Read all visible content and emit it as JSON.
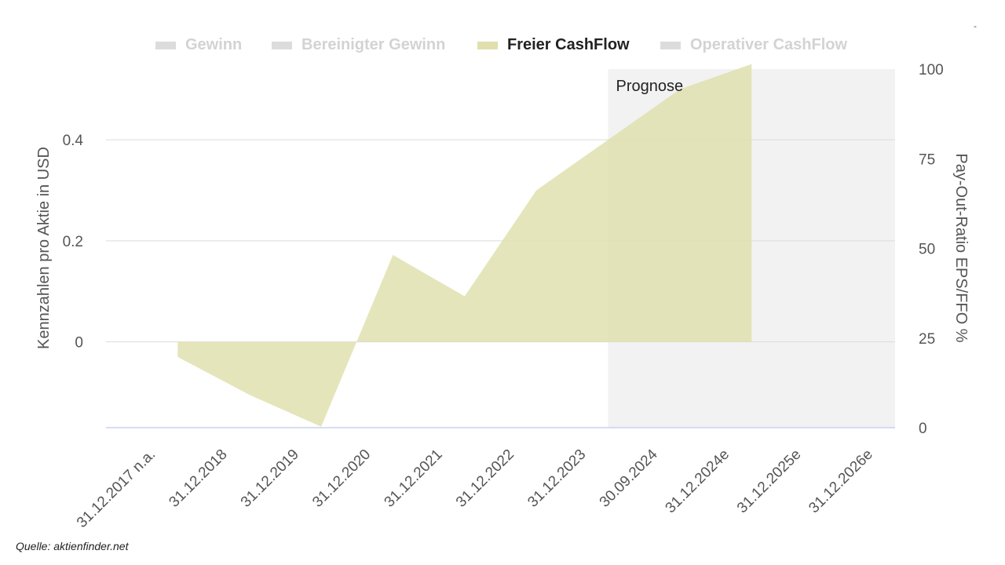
{
  "legend": {
    "items": [
      {
        "label": "Gewinn",
        "active": false
      },
      {
        "label": "Bereinigter Gewinn",
        "active": false
      },
      {
        "label": "Freier CashFlow",
        "active": true
      },
      {
        "label": "Operativer CashFlow",
        "active": false
      }
    ]
  },
  "source": "Quelle: aktienfinder.net",
  "corner_mark": "-",
  "colors": {
    "series_fill": "#dfe0ae",
    "forecast_band": "#f2f2f2",
    "grid": "#dcdcdc",
    "baseline": "#c7d3ee"
  },
  "chart_data": {
    "type": "area",
    "categories": [
      "31.12.2017 n.a.",
      "31.12.2018",
      "31.12.2019",
      "31.12.2020",
      "31.12.2021",
      "31.12.2022",
      "31.12.2023",
      "30.09.2024",
      "31.12.2024e",
      "31.12.2025e",
      "31.12.2026e"
    ],
    "series": [
      {
        "name": "Freier CashFlow",
        "values": [
          null,
          -0.03,
          -0.105,
          -0.168,
          0.172,
          0.09,
          0.3,
          0.4,
          0.5,
          0.55,
          null
        ]
      }
    ],
    "forecast_label": "Prognose",
    "forecast_start_index": 7,
    "ylabel_left": "Kennzahlen pro Aktie in USD",
    "ylabel_right": "Pay-Out-Ratio EPS/FFO %",
    "y_left_ticks": [
      "0",
      "0.2",
      "0.4"
    ],
    "y_left_tick_values": [
      0,
      0.2,
      0.4
    ],
    "y_left_range": [
      -0.17,
      0.54
    ],
    "y_right_ticks": [
      "0",
      "25",
      "50",
      "75",
      "100"
    ],
    "y_right_tick_values": [
      0,
      25,
      50,
      75,
      100
    ],
    "y_right_range": [
      0,
      100
    ],
    "grid": true,
    "legend_position": "top"
  }
}
